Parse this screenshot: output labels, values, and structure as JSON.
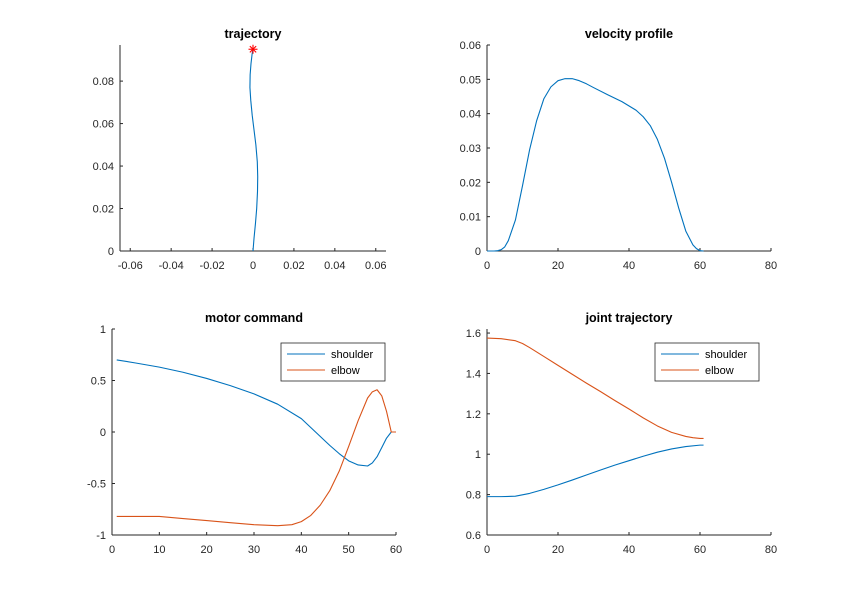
{
  "figure": {
    "background": "#ffffff"
  },
  "colors": {
    "blue": "#0072bd",
    "orange": "#d95319",
    "axis": "#262626",
    "marker": "#ff0000"
  },
  "chart_data": [
    {
      "type": "line",
      "title": "trajectory",
      "xlim": [
        -0.065,
        0.065
      ],
      "ylim": [
        0,
        0.097
      ],
      "xticks": [
        -0.06,
        -0.04,
        -0.02,
        0,
        0.02,
        0.04,
        0.06
      ],
      "xtick_labels": [
        "-0.06",
        "-0.04",
        "-0.02",
        "0",
        "0.02",
        "0.04",
        "0.06"
      ],
      "yticks": [
        0,
        0.02,
        0.04,
        0.06,
        0.08
      ],
      "ytick_labels": [
        "0",
        "0.02",
        "0.04",
        "0.06",
        "0.08"
      ],
      "grid": false,
      "series": [
        {
          "color": "#0072bd",
          "x": [
            0.0,
            0.0005,
            0.0012,
            0.0018,
            0.0022,
            0.0023,
            0.0021,
            0.0014,
            0.0005,
            -0.0004,
            -0.0011,
            -0.0015,
            -0.0014,
            -0.001,
            -0.0004,
            0.0
          ],
          "y": [
            0.0,
            0.006,
            0.013,
            0.02,
            0.028,
            0.035,
            0.042,
            0.05,
            0.057,
            0.064,
            0.071,
            0.077,
            0.083,
            0.088,
            0.093,
            0.095
          ]
        }
      ],
      "markers": [
        {
          "x": 0.0,
          "y": 0.095,
          "symbol": "*",
          "color": "#ff0000"
        }
      ]
    },
    {
      "type": "line",
      "title": "velocity profile",
      "xlim": [
        0,
        80
      ],
      "ylim": [
        0,
        0.06
      ],
      "xticks": [
        0,
        20,
        40,
        60,
        80
      ],
      "xtick_labels": [
        "0",
        "20",
        "40",
        "60",
        "80"
      ],
      "yticks": [
        0,
        0.01,
        0.02,
        0.03,
        0.04,
        0.05,
        0.06
      ],
      "ytick_labels": [
        "0",
        "0.01",
        "0.02",
        "0.03",
        "0.04",
        "0.05",
        "0.06"
      ],
      "grid": false,
      "series": [
        {
          "color": "#0072bd",
          "x": [
            0,
            2,
            3,
            4,
            5,
            6,
            8,
            10,
            12,
            14,
            16,
            18,
            20,
            22,
            24,
            26,
            28,
            30,
            34,
            38,
            42,
            44,
            46,
            48,
            50,
            52,
            54,
            56,
            58,
            59,
            60,
            61
          ],
          "y": [
            0,
            0,
            0.0001,
            0.0004,
            0.0012,
            0.003,
            0.009,
            0.019,
            0.0295,
            0.038,
            0.0443,
            0.0478,
            0.0496,
            0.0502,
            0.0502,
            0.0496,
            0.0487,
            0.0476,
            0.0455,
            0.0435,
            0.041,
            0.0391,
            0.0365,
            0.0325,
            0.027,
            0.02,
            0.0125,
            0.0058,
            0.0018,
            0.0007,
            0.0001,
            0
          ]
        }
      ]
    },
    {
      "type": "line",
      "title": "motor command",
      "xlim": [
        0,
        60
      ],
      "ylim": [
        -1,
        1
      ],
      "xticks": [
        0,
        10,
        20,
        30,
        40,
        50,
        60
      ],
      "xtick_labels": [
        "0",
        "10",
        "20",
        "30",
        "40",
        "50",
        "60"
      ],
      "yticks": [
        -1,
        -0.5,
        0,
        0.5,
        1
      ],
      "ytick_labels": [
        "-1",
        "-0.5",
        "0",
        "0.5",
        "1"
      ],
      "grid": false,
      "legend": {
        "position": "top-right",
        "entries": [
          "shoulder",
          "elbow"
        ]
      },
      "series": [
        {
          "name": "shoulder",
          "color": "#0072bd",
          "x": [
            1,
            5,
            10,
            15,
            20,
            25,
            30,
            35,
            40,
            43,
            46,
            48,
            50,
            52,
            54,
            55,
            56,
            57,
            58,
            59,
            60
          ],
          "y": [
            0.7,
            0.67,
            0.63,
            0.58,
            0.52,
            0.45,
            0.37,
            0.27,
            0.13,
            0.0,
            -0.13,
            -0.21,
            -0.28,
            -0.32,
            -0.33,
            -0.3,
            -0.24,
            -0.15,
            -0.06,
            0.0,
            0.0
          ]
        },
        {
          "name": "elbow",
          "color": "#d95319",
          "x": [
            1,
            5,
            10,
            15,
            20,
            25,
            30,
            35,
            38,
            40,
            42,
            44,
            46,
            48,
            50,
            52,
            54,
            55,
            56,
            57,
            58,
            59,
            60
          ],
          "y": [
            -0.82,
            -0.82,
            -0.82,
            -0.84,
            -0.86,
            -0.88,
            -0.9,
            -0.91,
            -0.9,
            -0.87,
            -0.81,
            -0.71,
            -0.57,
            -0.38,
            -0.14,
            0.11,
            0.33,
            0.39,
            0.41,
            0.35,
            0.2,
            0.0,
            0.0
          ]
        }
      ]
    },
    {
      "type": "line",
      "title": "joint trajectory",
      "xlim": [
        0,
        80
      ],
      "ylim": [
        0.6,
        1.62
      ],
      "xticks": [
        0,
        20,
        40,
        60,
        80
      ],
      "xtick_labels": [
        "0",
        "20",
        "40",
        "60",
        "80"
      ],
      "yticks": [
        0.6,
        0.8,
        1,
        1.2,
        1.4,
        1.6
      ],
      "ytick_labels": [
        "0.6",
        "0.8",
        "1",
        "1.2",
        "1.4",
        "1.6"
      ],
      "grid": false,
      "legend": {
        "position": "top-right",
        "entries": [
          "shoulder",
          "elbow"
        ]
      },
      "series": [
        {
          "name": "shoulder",
          "color": "#0072bd",
          "x": [
            0,
            4,
            8,
            12,
            16,
            20,
            24,
            28,
            32,
            36,
            40,
            44,
            48,
            52,
            56,
            60,
            61
          ],
          "y": [
            0.79,
            0.79,
            0.792,
            0.806,
            0.826,
            0.848,
            0.872,
            0.897,
            0.922,
            0.946,
            0.968,
            0.99,
            1.01,
            1.026,
            1.038,
            1.045,
            1.045
          ]
        },
        {
          "name": "elbow",
          "color": "#d95319",
          "x": [
            0,
            4,
            8,
            10,
            12,
            16,
            20,
            24,
            28,
            32,
            36,
            40,
            44,
            48,
            52,
            56,
            58,
            60,
            61
          ],
          "y": [
            1.575,
            1.572,
            1.562,
            1.548,
            1.528,
            1.484,
            1.44,
            1.396,
            1.352,
            1.31,
            1.266,
            1.224,
            1.18,
            1.14,
            1.108,
            1.088,
            1.082,
            1.078,
            1.078
          ]
        }
      ]
    }
  ]
}
